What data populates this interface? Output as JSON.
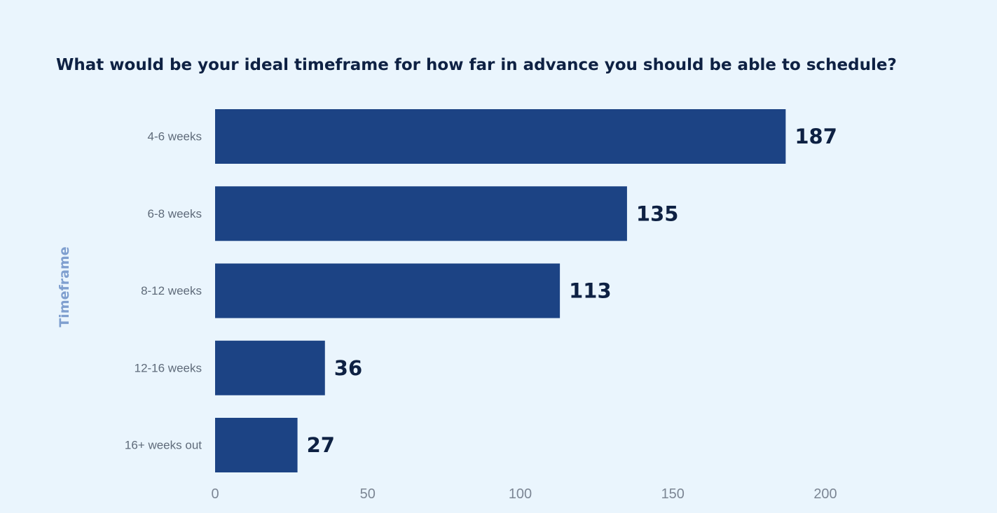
{
  "chart_data": {
    "type": "bar",
    "orientation": "horizontal",
    "title": "What would be your ideal timeframe for how far in advance you should be able to schedule?",
    "ylabel": "Timeframe",
    "xlabel": "",
    "categories": [
      "4-6 weeks",
      "6-8 weeks",
      "8-12 weeks",
      "12-16 weeks",
      "16+ weeks out"
    ],
    "values": [
      187,
      135,
      113,
      36,
      27
    ],
    "data_labels": [
      "187",
      "135",
      "113",
      "36",
      "27"
    ],
    "xlim": [
      0,
      200
    ],
    "xticks": [
      0,
      50,
      100,
      150,
      200
    ],
    "grid": false,
    "legend": "none",
    "bar_color": "#1c4384",
    "label_color": "#0e2143",
    "axis_title_color": "#7f9fcf"
  }
}
